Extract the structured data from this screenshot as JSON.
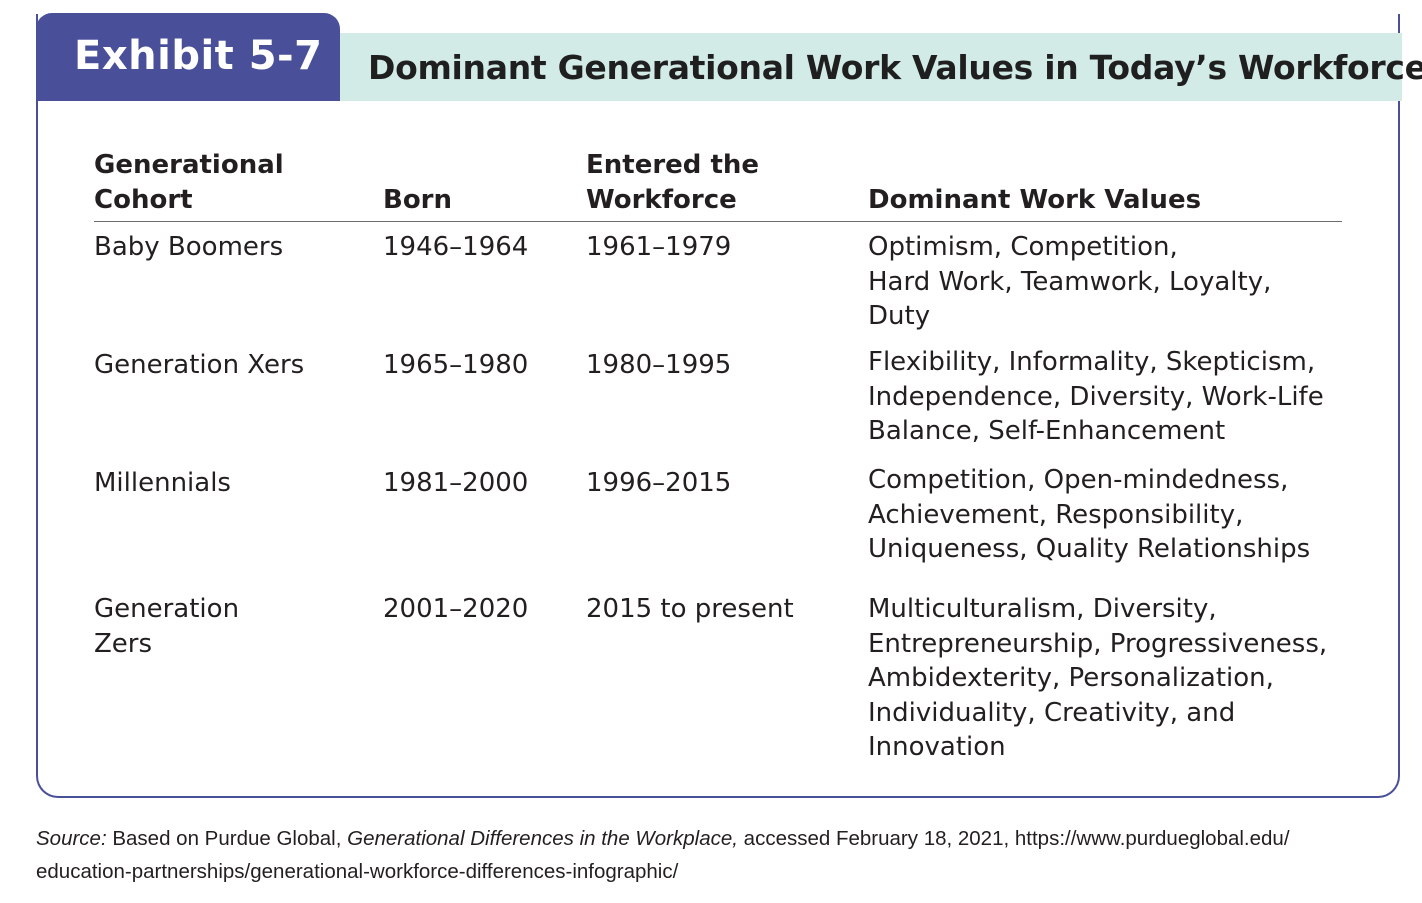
{
  "exhibit": {
    "label": "Exhibit 5-7",
    "title": "Dominant Generational Work Values in Today’s Workforce"
  },
  "table": {
    "headers": {
      "cohort": "Generational\nCohort",
      "born": "Born",
      "entered": "Entered the\nWorkforce",
      "values": "Dominant Work Values"
    },
    "rows": [
      {
        "cohort": "Baby Boomers",
        "born": "1946–1964",
        "entered": "1961–1979",
        "values": "Optimism, Competition,\nHard Work, Teamwork, Loyalty,\nDuty"
      },
      {
        "cohort": "Generation Xers",
        "born": "1965–1980",
        "entered": "1980–1995",
        "values": "Flexibility, Informality, Skepticism,\nIndependence, Diversity, Work-Life\nBalance, Self-Enhancement"
      },
      {
        "cohort": "Millennials",
        "born": "1981–2000",
        "entered": "1996–2015",
        "values": "Competition, Open-mindedness,\nAchievement, Responsibility,\nUniqueness, Quality Relationships"
      },
      {
        "cohort": "Generation\nZers",
        "born": "2001–2020",
        "entered": "2015 to present",
        "values": "Multiculturalism, Diversity,\nEntrepreneurship, Progressiveness,\nAmbidexterity, Personalization,\nIndividuality, Creativity, and\nInnovation"
      }
    ]
  },
  "source": {
    "label": "Source:",
    "text_before": " Based on Purdue Global, ",
    "work_title": "Generational Differences in the Workplace,",
    "text_after": " accessed February 18, 2021, https://www.purdueglobal.edu/",
    "line2": "education-partnerships/generational-workforce-differences-infographic/"
  },
  "colors": {
    "tab": "#4a4f9a",
    "title_band": "#d3ebe7",
    "frame": "#4a4f9a",
    "text": "#231f20"
  }
}
